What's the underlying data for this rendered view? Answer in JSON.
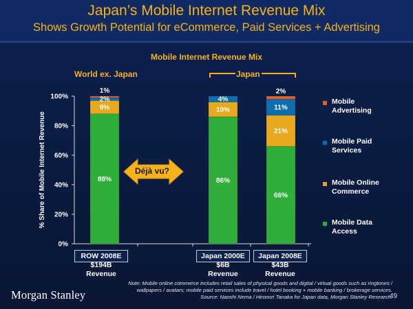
{
  "header": {
    "title": "Japan’s Mobile Internet Revenue Mix",
    "subtitle": "Shows Growth Potential for eCommerce, Paid Services + Advertising"
  },
  "chart_data": {
    "type": "bar",
    "stacked": true,
    "title": "Mobile Internet Revenue Mix",
    "ylabel": "% Share of Mobile Internet Revenue",
    "ylim": [
      0,
      100
    ],
    "yticks": [
      "0%",
      "20%",
      "40%",
      "60%",
      "80%",
      "100%"
    ],
    "categories": [
      "ROW 2008E",
      "Japan 2000E",
      "Japan 2008E"
    ],
    "series": [
      {
        "name": "Mobile Data Access",
        "color": "#2fae3a",
        "values": [
          88,
          86,
          66
        ],
        "labels": [
          "88%",
          "86%",
          "66%"
        ]
      },
      {
        "name": "Mobile Online Commerce",
        "color": "#e7a91e",
        "values": [
          9,
          10,
          21
        ],
        "labels": [
          "9%",
          "10%",
          "21%"
        ]
      },
      {
        "name": "Mobile Paid Services",
        "color": "#0f6fae",
        "values": [
          2,
          4,
          11
        ],
        "labels": [
          "2%",
          "4%",
          "11%"
        ]
      },
      {
        "name": "Mobile Advertising",
        "color": "#e0612a",
        "values": [
          1,
          0,
          2
        ],
        "labels": [
          "1%",
          "",
          "2%"
        ]
      }
    ],
    "revenue": [
      "$194B\nRevenue",
      "$6B\nRevenue",
      "$43B\nRevenue"
    ],
    "group_labels": {
      "world": "World ex. Japan",
      "japan": "Japan"
    },
    "callout": "Déjà vu?",
    "grid": false,
    "legend_position": "right"
  },
  "footer": {
    "note": "Note: Mobile online commerce includes retail sales of physical goods and digital / virtual goods such as ringtones / wallpapers / avatars; mobile paid services include travel / hotel booking + mobile banking / brokerage services.",
    "source": "Source: Naoshi Nema / Hironori Tanaka for Japan data, Morgan Stanley Research.",
    "logo": "Morgan Stanley",
    "page": "49"
  }
}
